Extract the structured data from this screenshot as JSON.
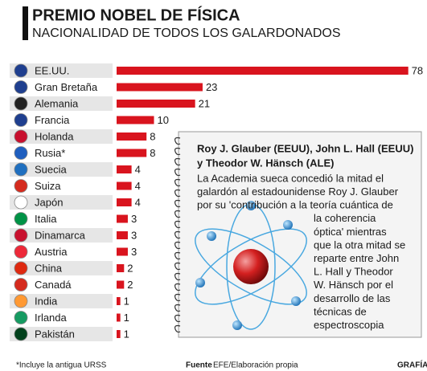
{
  "chart_data": {
    "type": "bar",
    "orientation": "horizontal",
    "title": "PREMIO NOBEL DE FÍSICA",
    "subtitle": "NACIONALIDAD DE TODOS LOS GALARDONADOS",
    "categories": [
      "EE.UU.",
      "Gran Bretaña",
      "Alemania",
      "Francia",
      "Holanda",
      "Rusia*",
      "Suecia",
      "Suiza",
      "Japón",
      "Italia",
      "Dinamarca",
      "Austria",
      "China",
      "Canadá",
      "India",
      "Irlanda",
      "Pakistán"
    ],
    "values": [
      78,
      23,
      21,
      10,
      8,
      8,
      4,
      4,
      4,
      3,
      3,
      3,
      2,
      2,
      1,
      1,
      1
    ],
    "color": "#d9141e",
    "footnote": "*Incluye la antigua URSS",
    "source_label": "Fuente",
    "source": "EFE/Elaboración propia",
    "credit": "GRAFÍA"
  },
  "note": {
    "title_lines": [
      "Roy J. Glauber (EEUU), John L. Hall (EEUU)",
      "y Theodor W. Hänsch (ALE)"
    ],
    "body_lines": [
      "La Academia sueca concedió la mitad el",
      "galardón al estadounidense Roy J. Glauber",
      "por su 'contribución a la teoría cuántica de",
      "la coherencia",
      "óptica' mientras",
      "que la otra mitad se",
      "reparte entre John",
      "L. Hall y Theodor",
      "W. Hänsch por el",
      "desarrollo de las",
      "técnicas de",
      "espectroscopia"
    ]
  }
}
